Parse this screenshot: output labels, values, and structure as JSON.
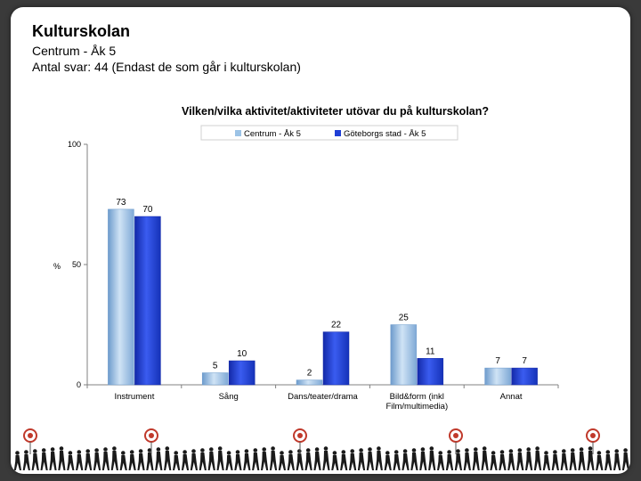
{
  "slide": {
    "title": "Kulturskolan",
    "subtitle": "Centrum - Åk 5",
    "respondents": "Antal svar: 44 (Endast de som går i kulturskolan)"
  },
  "chart_data": {
    "type": "bar",
    "title": "Vilken/vilka aktivitet/aktiviteter utövar du på kulturskolan?",
    "ylabel": "%",
    "xlabel": "",
    "ylim": [
      0,
      100
    ],
    "yticks": [
      0,
      50,
      100
    ],
    "legend_position": "top",
    "grid": false,
    "categories": [
      [
        "Instrument"
      ],
      [
        "Sång"
      ],
      [
        "Dans/teater/drama"
      ],
      [
        "Bild&form (inkl",
        "Film/multimedia)"
      ],
      [
        "Annat"
      ]
    ],
    "series": [
      {
        "name": "Centrum - Åk 5",
        "color": "#9cc3e6",
        "values": [
          73,
          5,
          2,
          25,
          7
        ]
      },
      {
        "name": "Göteborgs stad - Åk 5",
        "color": "#1f3fd6",
        "values": [
          70,
          10,
          22,
          11,
          7
        ]
      }
    ]
  },
  "footer": {
    "figure_icon": "walking-people-silhouettes",
    "target_icon": "target-icon"
  }
}
